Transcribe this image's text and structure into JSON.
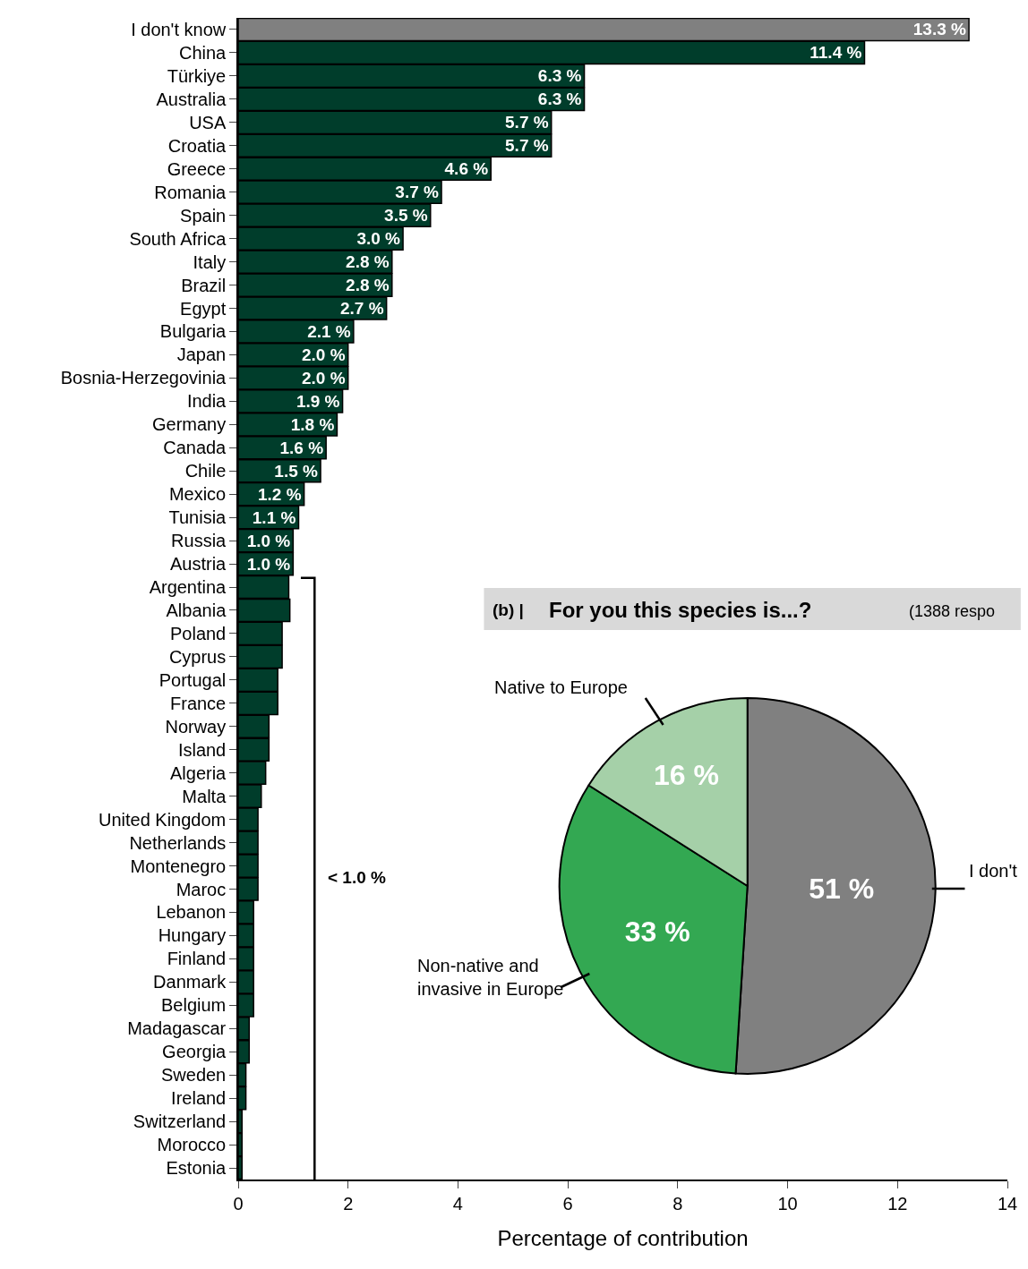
{
  "chart_data": [
    {
      "type": "bar",
      "orientation": "horizontal",
      "xlabel": "Percentage of contribution",
      "xlim": [
        0,
        14
      ],
      "xticks": [
        0,
        2,
        4,
        6,
        8,
        10,
        12,
        14
      ],
      "categories": [
        "I don't know",
        "China",
        "Türkiye",
        "Australia",
        "USA",
        "Croatia",
        "Greece",
        "Romania",
        "Spain",
        "South Africa",
        "Italy",
        "Brazil",
        "Egypt",
        "Bulgaria",
        "Japan",
        "Bosnia-Herzegovinia",
        "India",
        "Germany",
        "Canada",
        "Chile",
        "Mexico",
        "Tunisia",
        "Russia",
        "Austria",
        "Argentina",
        "Albania",
        "Poland",
        "Cyprus",
        "Portugal",
        "France",
        "Norway",
        "Island",
        "Algeria",
        "Malta",
        "United Kingdom",
        "Netherlands",
        "Montenegro",
        "Maroc",
        "Lebanon",
        "Hungary",
        "Finland",
        "Danmark",
        "Belgium",
        "Madagascar",
        "Georgia",
        "Sweden",
        "Ireland",
        "Switzerland",
        "Morocco",
        "Estonia"
      ],
      "values": [
        13.3,
        11.4,
        6.3,
        6.3,
        5.7,
        5.7,
        4.6,
        3.7,
        3.5,
        3.0,
        2.8,
        2.8,
        2.7,
        2.1,
        2.0,
        2.0,
        1.9,
        1.8,
        1.6,
        1.5,
        1.2,
        1.1,
        1.0,
        1.0,
        0.92,
        0.94,
        0.8,
        0.8,
        0.72,
        0.72,
        0.56,
        0.56,
        0.5,
        0.42,
        0.36,
        0.36,
        0.36,
        0.36,
        0.28,
        0.28,
        0.28,
        0.28,
        0.28,
        0.2,
        0.2,
        0.14,
        0.14,
        0.07,
        0.07,
        0.07
      ],
      "colors": [
        "#808080",
        "#003d2b",
        "#003d2b",
        "#003d2b",
        "#003d2b",
        "#003d2b",
        "#003d2b",
        "#003d2b",
        "#003d2b",
        "#003d2b",
        "#003d2b",
        "#003d2b",
        "#003d2b",
        "#003d2b",
        "#003d2b",
        "#003d2b",
        "#003d2b",
        "#003d2b",
        "#003d2b",
        "#003d2b",
        "#003d2b",
        "#003d2b",
        "#003d2b",
        "#003d2b",
        "#003d2b",
        "#003d2b",
        "#003d2b",
        "#003d2b",
        "#003d2b",
        "#003d2b",
        "#003d2b",
        "#003d2b",
        "#003d2b",
        "#003d2b",
        "#003d2b",
        "#003d2b",
        "#003d2b",
        "#003d2b",
        "#003d2b",
        "#003d2b",
        "#003d2b",
        "#003d2b",
        "#003d2b",
        "#003d2b",
        "#003d2b",
        "#003d2b",
        "#003d2b",
        "#003d2b",
        "#003d2b",
        "#003d2b"
      ],
      "value_labels": [
        "13.3 %",
        "11.4 %",
        "6.3 %",
        "6.3 %",
        "5.7 %",
        "5.7 %",
        "4.6 %",
        "3.7 %",
        "3.5 %",
        "3.0 %",
        "2.8 %",
        "2.8 %",
        "2.7 %",
        "2.1 %",
        "2.0 %",
        "2.0 %",
        "1.9 %",
        "1.8 %",
        "1.6 %",
        "1.5 %",
        "1.2 %",
        "1.1 %",
        "1.0 %",
        "1.0 %",
        null,
        null,
        null,
        null,
        null,
        null,
        null,
        null,
        null,
        null,
        null,
        null,
        null,
        null,
        null,
        null,
        null,
        null,
        null,
        null,
        null,
        null,
        null,
        null,
        null,
        null
      ],
      "annotations": [
        "< 1.0 %"
      ]
    },
    {
      "type": "pie",
      "title": "For you this species is...?",
      "subtitle": "(1388 respo",
      "annotations": [
        "(b) |"
      ],
      "categories": [
        "I don't",
        "Non-native and\ninvasive in Europe",
        "Native to Europe"
      ],
      "values": [
        51,
        33,
        16
      ],
      "colors": [
        "#808080",
        "#33a852",
        "#a5d0a8"
      ],
      "value_labels": [
        "51 %",
        "33 %",
        "16 %"
      ]
    }
  ]
}
